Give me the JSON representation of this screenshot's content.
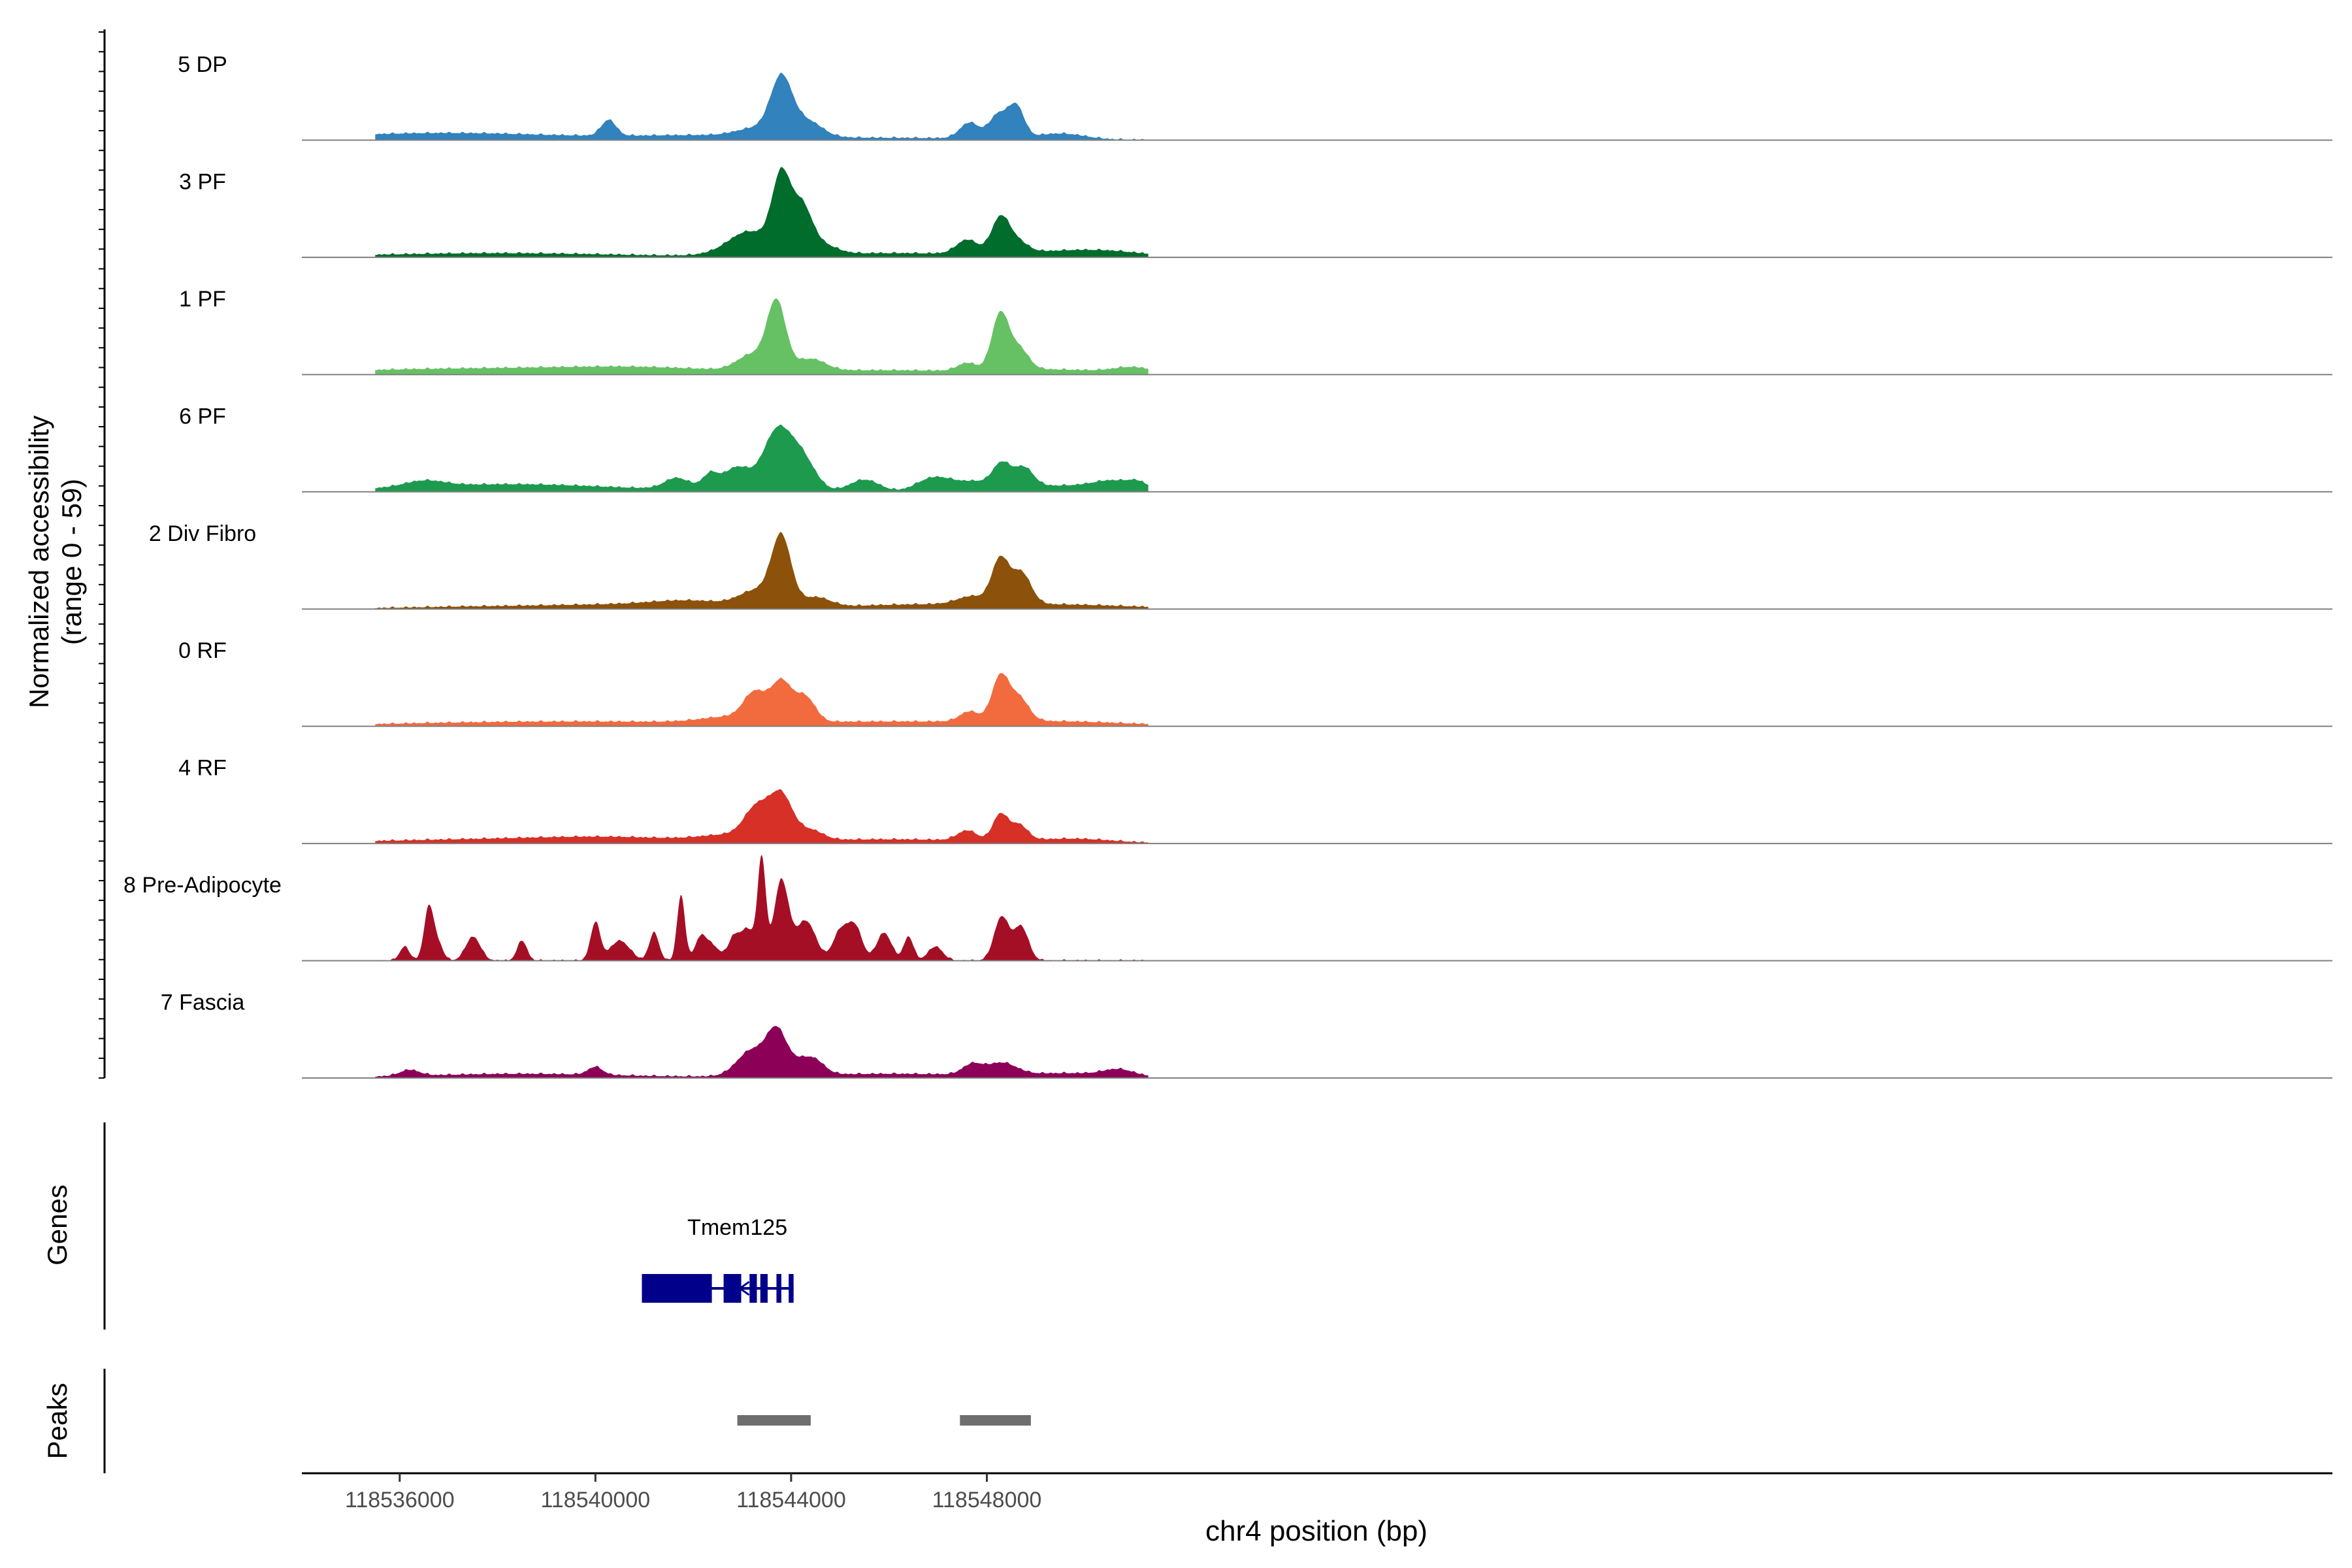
{
  "chart_data": {
    "type": "area",
    "title": "",
    "y_axis_label": "Normalized accessibility",
    "y_axis_sublabel": "(range 0 - 59)",
    "ylim": [
      0,
      59
    ],
    "xlabel": "chr4 position (bp)",
    "xlim": [
      118534000,
      118575500
    ],
    "x_ticks": [
      118536000,
      118540000,
      118544000,
      118548000
    ],
    "x_tick_labels": [
      "118536000",
      "118540000",
      "118544000",
      "118548000"
    ],
    "tracks": [
      {
        "name": "5 DP",
        "color": "#3182BD",
        "peaks": [
          [
            118543800,
            28,
            220
          ],
          [
            118548600,
            16,
            160
          ],
          [
            118548230,
            12,
            180
          ],
          [
            118547650,
            8,
            200
          ],
          [
            118544330,
            8,
            300
          ],
          [
            118540270,
            8,
            150
          ],
          [
            118543300,
            4,
            400
          ],
          [
            118549500,
            3,
            500
          ],
          [
            118535900,
            2,
            2000
          ],
          [
            118538000,
            2,
            2000
          ],
          [
            118542200,
            2,
            1500
          ],
          [
            118546000,
            1,
            2000
          ]
        ]
      },
      {
        "name": "3 PF",
        "color": "#006D2C",
        "peaks": [
          [
            118543800,
            38,
            190
          ],
          [
            118544220,
            22,
            200
          ],
          [
            118548270,
            17,
            180
          ],
          [
            118543200,
            10,
            380
          ],
          [
            118547600,
            7,
            220
          ],
          [
            118548600,
            6,
            220
          ],
          [
            118544600,
            5,
            300
          ],
          [
            118542800,
            3,
            400
          ],
          [
            118538000,
            2,
            2500
          ],
          [
            118546000,
            2,
            2000
          ],
          [
            118549500,
            2,
            1000
          ],
          [
            118550500,
            2,
            800
          ]
        ]
      },
      {
        "name": "1 PF",
        "color": "#66C164",
        "peaks": [
          [
            118543700,
            34,
            190
          ],
          [
            118548270,
            28,
            170
          ],
          [
            118548650,
            11,
            200
          ],
          [
            118543200,
            8,
            300
          ],
          [
            118544400,
            6,
            300
          ],
          [
            118547600,
            4,
            200
          ],
          [
            118537800,
            3,
            3000
          ],
          [
            118541000,
            2,
            1500
          ],
          [
            118546000,
            2,
            2000
          ],
          [
            118549500,
            2,
            1000
          ],
          [
            118551000,
            3,
            400
          ]
        ]
      },
      {
        "name": "6 PF",
        "color": "#1D9A4E",
        "peaks": [
          [
            118543700,
            27,
            270
          ],
          [
            118544200,
            17,
            280
          ],
          [
            118542900,
            9,
            260
          ],
          [
            118548300,
            12,
            180
          ],
          [
            118548750,
            10,
            200
          ],
          [
            118542350,
            6,
            150
          ],
          [
            118541650,
            5,
            240
          ],
          [
            118542900,
            3,
            800
          ],
          [
            118545500,
            6,
            300
          ],
          [
            118546800,
            5,
            300
          ],
          [
            118547200,
            4,
            300
          ],
          [
            118547800,
            4,
            300
          ],
          [
            118536500,
            3,
            400
          ],
          [
            118537500,
            2,
            2000
          ],
          [
            118539000,
            2,
            2000
          ],
          [
            118549500,
            3,
            1000
          ],
          [
            118550600,
            4,
            400
          ],
          [
            118551100,
            3,
            200
          ]
        ]
      },
      {
        "name": "2 Div Fibro",
        "color": "#8C510A",
        "peaks": [
          [
            118543800,
            34,
            200
          ],
          [
            118548270,
            22,
            170
          ],
          [
            118548700,
            16,
            200
          ],
          [
            118543300,
            8,
            350
          ],
          [
            118544500,
            5,
            300
          ],
          [
            118547700,
            4,
            300
          ],
          [
            118542000,
            3,
            800
          ],
          [
            118540500,
            2,
            1500
          ],
          [
            118546500,
            2,
            1500
          ],
          [
            118549500,
            2,
            1500
          ],
          [
            118537500,
            1,
            1500
          ]
        ]
      },
      {
        "name": "0 RF",
        "color": "#F16B3F",
        "peaks": [
          [
            118543800,
            20,
            220
          ],
          [
            118548270,
            22,
            170
          ],
          [
            118548650,
            12,
            200
          ],
          [
            118543250,
            13,
            220
          ],
          [
            118544300,
            12,
            200
          ],
          [
            118547650,
            5,
            200
          ],
          [
            118542800,
            3,
            600
          ],
          [
            118540500,
            2,
            2500
          ],
          [
            118537000,
            1,
            2000
          ],
          [
            118546000,
            2,
            2000
          ],
          [
            118549500,
            2,
            1500
          ]
        ]
      },
      {
        "name": "4 RF",
        "color": "#D73027",
        "peaks": [
          [
            118543800,
            22,
            230
          ],
          [
            118543300,
            15,
            250
          ],
          [
            118548270,
            13,
            150
          ],
          [
            118548650,
            8,
            180
          ],
          [
            118547600,
            5,
            200
          ],
          [
            118544400,
            5,
            250
          ],
          [
            118542800,
            3,
            600
          ],
          [
            118538000,
            2,
            2500
          ],
          [
            118540500,
            2,
            1500
          ],
          [
            118546000,
            2,
            2000
          ],
          [
            118549800,
            2,
            800
          ]
        ]
      },
      {
        "name": "8 Pre-Adipocyte",
        "color": "#A50F26",
        "peaks": [
          [
            118543400,
            47,
            80
          ],
          [
            118543800,
            40,
            150
          ],
          [
            118541750,
            33,
            80
          ],
          [
            118536600,
            27,
            100
          ],
          [
            118548300,
            22,
            150
          ],
          [
            118548700,
            17,
            150
          ],
          [
            118544300,
            20,
            200
          ],
          [
            118545300,
            17,
            150
          ],
          [
            118545000,
            14,
            150
          ],
          [
            118540000,
            19,
            100
          ],
          [
            118542150,
            11,
            120
          ],
          [
            118543100,
            16,
            200
          ],
          [
            118541200,
            14,
            100
          ],
          [
            118537500,
            12,
            150
          ],
          [
            118536100,
            7,
            100
          ],
          [
            118538500,
            10,
            100
          ],
          [
            118540500,
            10,
            200
          ],
          [
            118546400,
            12,
            100
          ],
          [
            118545900,
            14,
            150
          ],
          [
            118542800,
            7,
            100
          ],
          [
            118542400,
            7,
            150
          ],
          [
            118536800,
            7,
            100
          ],
          [
            118546950,
            7,
            150
          ]
        ]
      },
      {
        "name": "7 Fascia",
        "color": "#8C0058",
        "peaks": [
          [
            118543700,
            20,
            200
          ],
          [
            118543200,
            13,
            300
          ],
          [
            118544200,
            7,
            300
          ],
          [
            118544500,
            4,
            200
          ],
          [
            118548300,
            6,
            300
          ],
          [
            118547700,
            5,
            200
          ],
          [
            118540000,
            4,
            150
          ],
          [
            118536200,
            3,
            200
          ],
          [
            118538500,
            2,
            2000
          ],
          [
            118546000,
            2,
            2000
          ],
          [
            118549800,
            2,
            1000
          ],
          [
            118550700,
            3,
            300
          ]
        ]
      }
    ],
    "genes": {
      "label": "Genes",
      "items": [
        {
          "name": "Tmem125",
          "strand": "-",
          "start": 118540950,
          "end": 118544050,
          "exons": [
            [
              118540950,
              118542380
            ],
            [
              118542620,
              118542980
            ],
            [
              118543150,
              118543300
            ],
            [
              118543370,
              118543520
            ],
            [
              118543700,
              118543800
            ],
            [
              118543950,
              118544050
            ]
          ]
        }
      ]
    },
    "peaks_track": {
      "label": "Peaks",
      "regions": [
        [
          118542900,
          118544400
        ],
        [
          118547450,
          118548900
        ]
      ]
    }
  }
}
